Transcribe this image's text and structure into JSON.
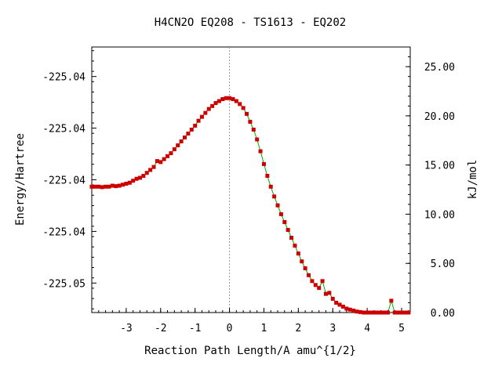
{
  "chart_data": {
    "type": "line",
    "title": "H4CN2O   EQ208 - TS1613 - EQ202",
    "xlabel": "Reaction Path Length/A amu^{1/2}",
    "ylabel": "Energy/Hartree",
    "y2label": "kJ/mol",
    "x_ticks": [
      "-3",
      "-2",
      "-1",
      "0",
      "1",
      "2",
      "3",
      "4",
      "5"
    ],
    "y_ticks_left": [
      "-225.04",
      "-225.04",
      "-225.04",
      "-225.04",
      "-225.05"
    ],
    "y_ticks_right": [
      "25.00",
      "20.00",
      "15.00",
      "10.00",
      "5.00",
      "0.00"
    ],
    "xlim": [
      -4.0,
      5.25
    ],
    "y2lim": [
      0.0,
      27.0
    ],
    "ts_marker_x": 0.0,
    "grid": false,
    "colors": {
      "line": "#00aa00",
      "marker": "#cc0000",
      "ts_line": "#999999",
      "frame": "#000000"
    },
    "series": [
      {
        "points": [
          [
            -4.0,
            12.8
          ],
          [
            -3.9,
            12.8
          ],
          [
            -3.8,
            12.8
          ],
          [
            -3.7,
            12.75
          ],
          [
            -3.6,
            12.8
          ],
          [
            -3.5,
            12.8
          ],
          [
            -3.4,
            12.9
          ],
          [
            -3.3,
            12.85
          ],
          [
            -3.2,
            12.9
          ],
          [
            -3.1,
            13.0
          ],
          [
            -3.0,
            13.1
          ],
          [
            -2.9,
            13.2
          ],
          [
            -2.8,
            13.4
          ],
          [
            -2.7,
            13.6
          ],
          [
            -2.6,
            13.7
          ],
          [
            -2.5,
            13.9
          ],
          [
            -2.4,
            14.2
          ],
          [
            -2.3,
            14.5
          ],
          [
            -2.2,
            14.8
          ],
          [
            -2.1,
            15.4
          ],
          [
            -2.0,
            15.3
          ],
          [
            -1.9,
            15.6
          ],
          [
            -1.8,
            15.9
          ],
          [
            -1.7,
            16.2
          ],
          [
            -1.6,
            16.6
          ],
          [
            -1.5,
            17.0
          ],
          [
            -1.4,
            17.4
          ],
          [
            -1.3,
            17.8
          ],
          [
            -1.2,
            18.2
          ],
          [
            -1.1,
            18.6
          ],
          [
            -1.0,
            19.0
          ],
          [
            -0.9,
            19.5
          ],
          [
            -0.8,
            19.9
          ],
          [
            -0.7,
            20.3
          ],
          [
            -0.6,
            20.7
          ],
          [
            -0.5,
            21.0
          ],
          [
            -0.4,
            21.3
          ],
          [
            -0.3,
            21.5
          ],
          [
            -0.2,
            21.7
          ],
          [
            -0.1,
            21.8
          ],
          [
            0.0,
            21.8
          ],
          [
            0.1,
            21.7
          ],
          [
            0.2,
            21.5
          ],
          [
            0.3,
            21.2
          ],
          [
            0.4,
            20.8
          ],
          [
            0.5,
            20.2
          ],
          [
            0.6,
            19.4
          ],
          [
            0.7,
            18.6
          ],
          [
            0.8,
            17.6
          ],
          [
            0.9,
            16.4
          ],
          [
            1.0,
            15.1
          ],
          [
            1.1,
            13.9
          ],
          [
            1.2,
            12.8
          ],
          [
            1.3,
            11.8
          ],
          [
            1.4,
            10.9
          ],
          [
            1.5,
            10.0
          ],
          [
            1.6,
            9.2
          ],
          [
            1.7,
            8.4
          ],
          [
            1.8,
            7.6
          ],
          [
            1.9,
            6.8
          ],
          [
            2.0,
            6.0
          ],
          [
            2.1,
            5.2
          ],
          [
            2.2,
            4.5
          ],
          [
            2.3,
            3.8
          ],
          [
            2.4,
            3.2
          ],
          [
            2.5,
            2.8
          ],
          [
            2.6,
            2.5
          ],
          [
            2.7,
            3.2
          ],
          [
            2.8,
            1.9
          ],
          [
            2.9,
            2.0
          ],
          [
            3.0,
            1.4
          ],
          [
            3.1,
            1.0
          ],
          [
            3.2,
            0.8
          ],
          [
            3.3,
            0.6
          ],
          [
            3.4,
            0.4
          ],
          [
            3.5,
            0.3
          ],
          [
            3.6,
            0.2
          ],
          [
            3.7,
            0.1
          ],
          [
            3.8,
            0.05
          ],
          [
            3.9,
            0.0
          ],
          [
            4.0,
            0.0
          ],
          [
            4.1,
            0.0
          ],
          [
            4.2,
            0.0
          ],
          [
            4.3,
            0.0
          ],
          [
            4.4,
            0.0
          ],
          [
            4.5,
            0.0
          ],
          [
            4.6,
            0.0
          ],
          [
            4.7,
            1.2
          ],
          [
            4.8,
            0.0
          ],
          [
            4.9,
            0.0
          ],
          [
            5.0,
            0.0
          ],
          [
            5.1,
            0.0
          ],
          [
            5.2,
            0.0
          ]
        ]
      }
    ]
  }
}
